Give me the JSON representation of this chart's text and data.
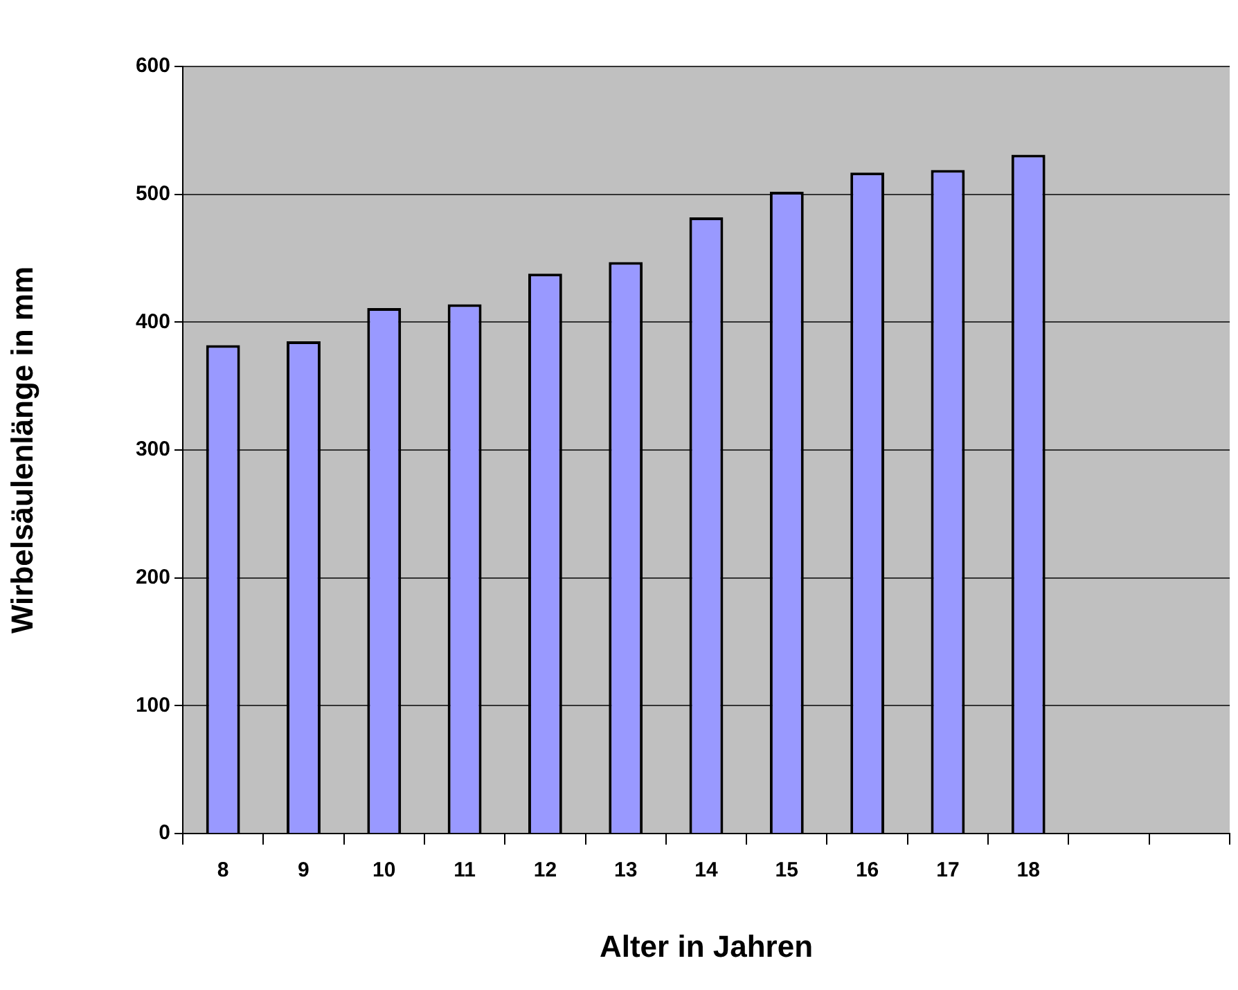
{
  "chart_data": {
    "type": "bar",
    "xlabel": "Alter in Jahren",
    "ylabel": "Wirbelsäulenlänge in mm",
    "categories": [
      "8",
      "9",
      "10",
      "11",
      "12",
      "13",
      "14",
      "15",
      "16",
      "17",
      "18",
      null,
      null
    ],
    "values": [
      382,
      385,
      411,
      414,
      438,
      447,
      482,
      502,
      517,
      519,
      531,
      null,
      null
    ],
    "color": "#9999ff",
    "ylim": [
      0,
      600
    ],
    "yticks": [
      0,
      100,
      200,
      300,
      400,
      500,
      600
    ],
    "grid": "y",
    "legend": false
  }
}
